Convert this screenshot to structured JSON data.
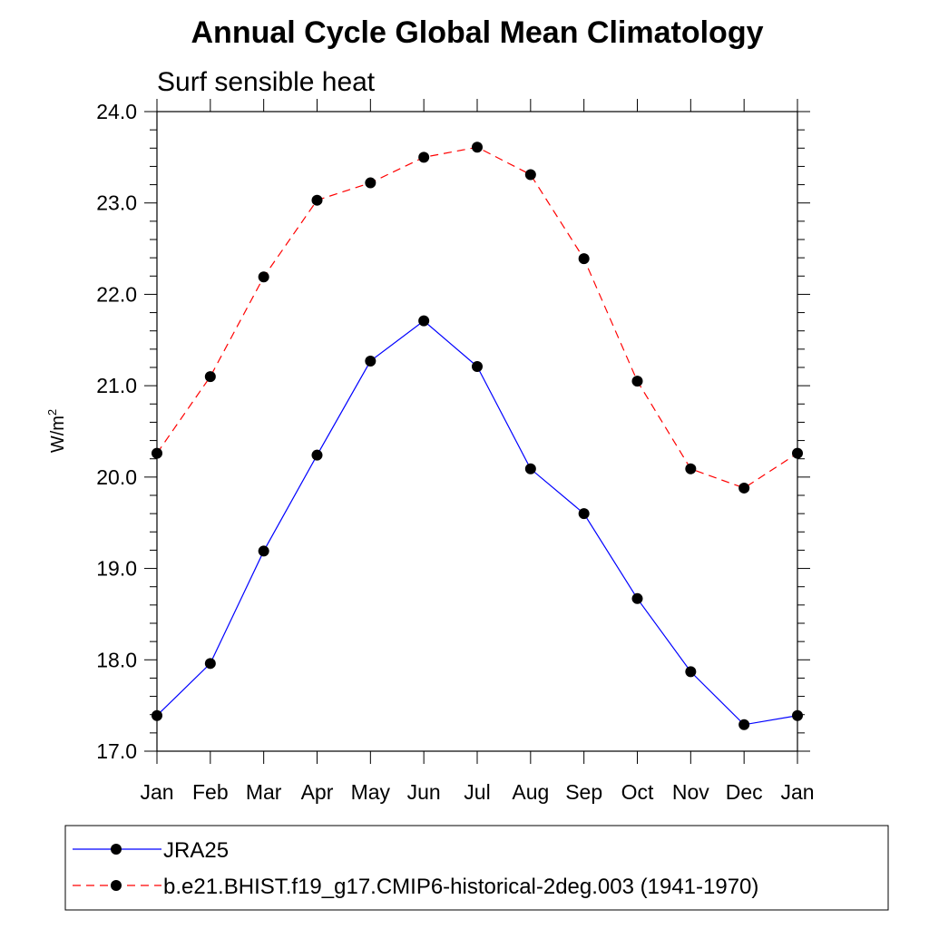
{
  "chart_data": {
    "type": "line",
    "title": "Annual Cycle Global Mean Climatology",
    "subtitle": "Surf sensible heat",
    "ylabel": "W/m",
    "ylabel_superscript": "2",
    "categories": [
      "Jan",
      "Feb",
      "Mar",
      "Apr",
      "May",
      "Jun",
      "Jul",
      "Aug",
      "Sep",
      "Oct",
      "Nov",
      "Dec",
      "Jan"
    ],
    "ylim": [
      17.0,
      24.0
    ],
    "yticks": [
      "17.0",
      "18.0",
      "19.0",
      "20.0",
      "21.0",
      "22.0",
      "23.0",
      "24.0"
    ],
    "grid": false,
    "legend_position": "bottom",
    "series": [
      {
        "name": "JRA25",
        "color": "#0000ff",
        "dash": "solid",
        "values": [
          17.39,
          17.96,
          19.19,
          20.24,
          21.27,
          21.71,
          21.21,
          20.09,
          19.6,
          18.67,
          17.87,
          17.29,
          17.39
        ]
      },
      {
        "name": "b.e21.BHIST.f19_g17.CMIP6-historical-2deg.003 (1941-1970)",
        "color": "#ff0000",
        "dash": "dashed",
        "values": [
          20.26,
          21.1,
          22.19,
          23.03,
          23.22,
          23.5,
          23.61,
          23.31,
          22.39,
          21.05,
          20.09,
          19.88,
          20.26
        ]
      }
    ]
  }
}
